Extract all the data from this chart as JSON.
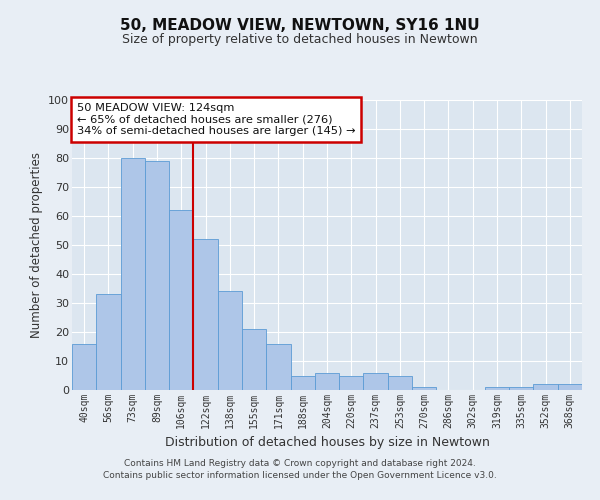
{
  "title": "50, MEADOW VIEW, NEWTOWN, SY16 1NU",
  "subtitle": "Size of property relative to detached houses in Newtown",
  "xlabel": "Distribution of detached houses by size in Newtown",
  "ylabel": "Number of detached properties",
  "bar_labels": [
    "40sqm",
    "56sqm",
    "73sqm",
    "89sqm",
    "106sqm",
    "122sqm",
    "138sqm",
    "155sqm",
    "171sqm",
    "188sqm",
    "204sqm",
    "220sqm",
    "237sqm",
    "253sqm",
    "270sqm",
    "286sqm",
    "302sqm",
    "319sqm",
    "335sqm",
    "352sqm",
    "368sqm"
  ],
  "bar_values": [
    16,
    33,
    80,
    79,
    62,
    52,
    34,
    21,
    16,
    5,
    6,
    5,
    6,
    5,
    1,
    0,
    0,
    1,
    1,
    2,
    2
  ],
  "bar_color": "#aec6e8",
  "bar_edge_color": "#5b9bd5",
  "vline_color": "#cc0000",
  "vline_x_idx": 5,
  "ylim": [
    0,
    100
  ],
  "yticks": [
    0,
    10,
    20,
    30,
    40,
    50,
    60,
    70,
    80,
    90,
    100
  ],
  "annotation_title": "50 MEADOW VIEW: 124sqm",
  "annotation_line1": "← 65% of detached houses are smaller (276)",
  "annotation_line2": "34% of semi-detached houses are larger (145) →",
  "annotation_box_color": "#ffffff",
  "annotation_box_edge": "#cc0000",
  "bg_color": "#e8eef5",
  "plot_bg_color": "#dce6f0",
  "grid_color": "#ffffff",
  "footer_line1": "Contains HM Land Registry data © Crown copyright and database right 2024.",
  "footer_line2": "Contains public sector information licensed under the Open Government Licence v3.0."
}
